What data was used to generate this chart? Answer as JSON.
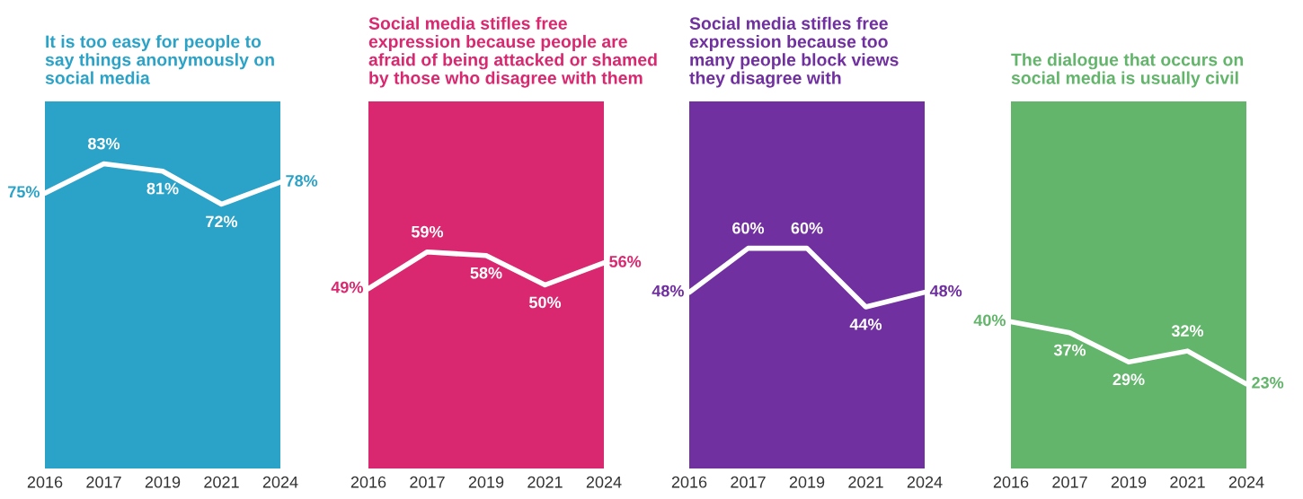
{
  "chart_data": [
    {
      "type": "line",
      "title": "It is too easy for people to\nsay things anonymously on\nsocial media",
      "categories": [
        "2016",
        "2017",
        "2019",
        "2021",
        "2024"
      ],
      "series": [
        {
          "color": "#ffffff",
          "values": [
            75,
            83,
            81,
            72,
            78
          ],
          "value_labels": [
            "75%",
            "83%",
            "81%",
            "72%",
            "78%"
          ]
        }
      ],
      "ylim": [
        0,
        100
      ],
      "tick_labels": "x",
      "grid": false,
      "marker": "none",
      "line_style": "solid",
      "bands": [
        {
          "axis": "y",
          "from": 0,
          "to": 100,
          "color": "#2ba3c8"
        }
      ]
    },
    {
      "type": "line",
      "title": "Social media stifles free\nexpression because people are\nafraid of being attacked or shamed\nby those who disagree with them",
      "categories": [
        "2016",
        "2017",
        "2019",
        "2021",
        "2024"
      ],
      "series": [
        {
          "color": "#ffffff",
          "values": [
            49,
            59,
            58,
            50,
            56
          ],
          "value_labels": [
            "49%",
            "59%",
            "58%",
            "50%",
            "56%"
          ]
        }
      ],
      "ylim": [
        0,
        100
      ],
      "tick_labels": "x",
      "grid": false,
      "marker": "none",
      "line_style": "solid",
      "bands": [
        {
          "axis": "y",
          "from": 0,
          "to": 100,
          "color": "#d9286f"
        }
      ]
    },
    {
      "type": "line",
      "title": "Social media stifles free\nexpression because too\nmany people block views\nthey disagree with",
      "categories": [
        "2016",
        "2017",
        "2019",
        "2021",
        "2024"
      ],
      "series": [
        {
          "color": "#ffffff",
          "values": [
            48,
            60,
            60,
            44,
            48
          ],
          "value_labels": [
            "48%",
            "60%",
            "60%",
            "44%",
            "48%"
          ]
        }
      ],
      "ylim": [
        0,
        100
      ],
      "tick_labels": "x",
      "grid": false,
      "marker": "none",
      "line_style": "solid",
      "bands": [
        {
          "axis": "y",
          "from": 0,
          "to": 100,
          "color": "#7030a0"
        }
      ]
    },
    {
      "type": "line",
      "title": "The dialogue that occurs on\nsocial media is usually civil",
      "categories": [
        "2016",
        "2017",
        "2019",
        "2021",
        "2024"
      ],
      "series": [
        {
          "color": "#ffffff",
          "values": [
            40,
            37,
            29,
            32,
            23
          ],
          "value_labels": [
            "40%",
            "37%",
            "29%",
            "32%",
            "23%"
          ]
        }
      ],
      "ylim": [
        0,
        100
      ],
      "tick_labels": "x",
      "grid": false,
      "marker": "none",
      "line_style": "solid",
      "bands": [
        {
          "axis": "y",
          "from": 0,
          "to": 100,
          "color": "#62b56a"
        }
      ]
    }
  ]
}
